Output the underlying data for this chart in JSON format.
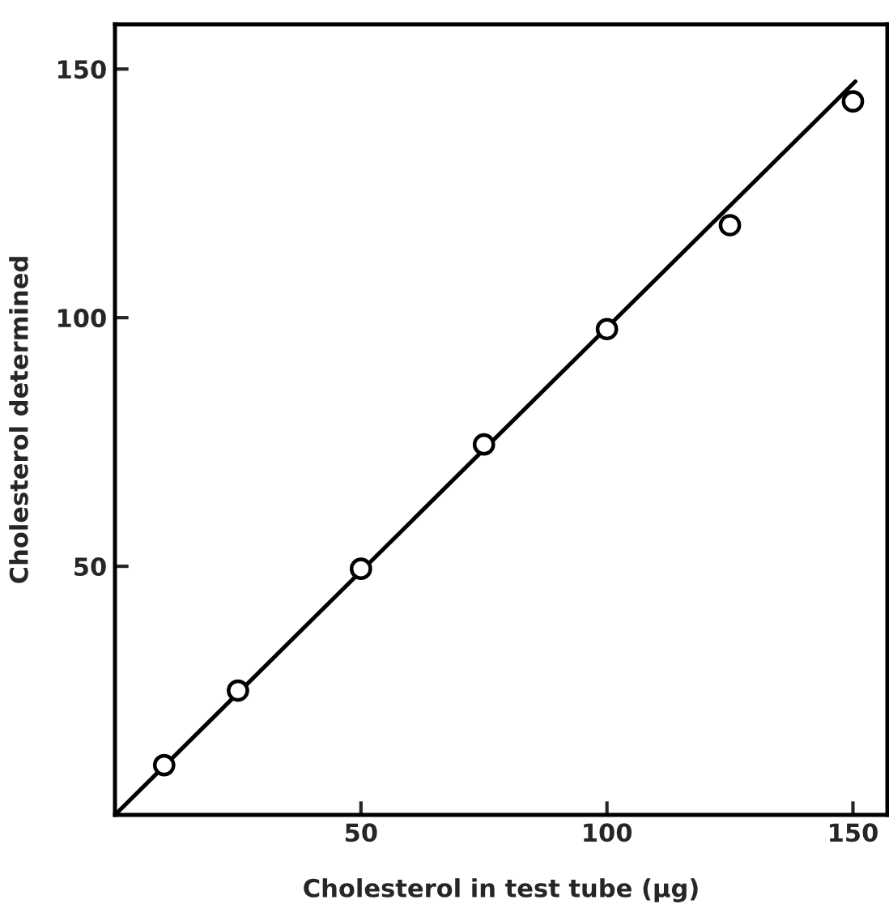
{
  "chart_data": {
    "type": "scatter",
    "xlabel": "Cholesterol in test tube (µg)",
    "ylabel": "Cholesterol determined",
    "xlim": [
      0,
      157
    ],
    "ylim": [
      0,
      159
    ],
    "xticks": [
      50,
      100,
      150
    ],
    "yticks": [
      50,
      100,
      150
    ],
    "grid": false,
    "marker": "circle",
    "series": [
      {
        "color": "#000000",
        "x": [
          10,
          25,
          50,
          75,
          100,
          125,
          150
        ],
        "values": [
          10,
          25,
          49.5,
          74.5,
          97.7,
          118.6,
          143.5
        ]
      },
      {
        "type": "line",
        "color": "#000000",
        "line_style": "solid",
        "marker": "none",
        "x": [
          0,
          150.5
        ],
        "values": [
          0,
          147.5
        ]
      }
    ]
  }
}
